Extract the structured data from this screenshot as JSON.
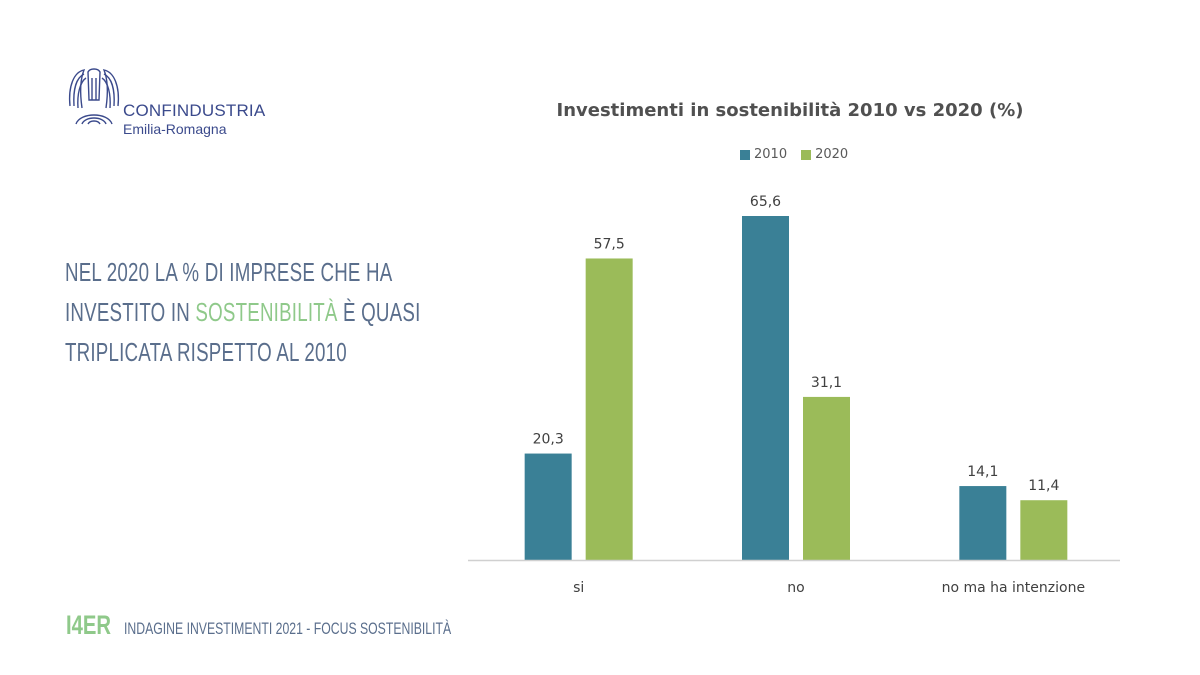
{
  "logo": {
    "name": "CONFINDUSTRIA",
    "region": "Emilia-Romagna"
  },
  "headline": {
    "before": "NEL 2020 LA % DI IMPRESE CHE HA INVESTITO IN ",
    "accent": "SOSTENIBILITÀ",
    "after": " È QUASI TRIPLICATA RISPETTO AL 2010"
  },
  "footer": {
    "brand": "I4ER",
    "text": "INDAGINE INVESTIMENTI 2021 - FOCUS SOSTENIBILITÀ"
  },
  "colors": {
    "series_2010": "#3a8096",
    "series_2020": "#9bbb59",
    "headline": "#5a6e8c",
    "accent": "#8fc98a"
  },
  "chart_data": {
    "type": "bar",
    "title": "Investimenti in sostenibilità 2010 vs 2020 (%)",
    "xlabel": "",
    "ylabel": "",
    "ylim": [
      0,
      70
    ],
    "grid": false,
    "legend_position": "top",
    "categories": [
      "si",
      "no",
      "no ma ha intenzione"
    ],
    "series": [
      {
        "name": "2010",
        "values": [
          20.3,
          65.6,
          14.1
        ],
        "labels": [
          "20,3",
          "65,6",
          "14,1"
        ],
        "color": "#3a8096"
      },
      {
        "name": "2020",
        "values": [
          57.5,
          31.1,
          11.4
        ],
        "labels": [
          "57,5",
          "31,1",
          "11,4"
        ],
        "color": "#9bbb59"
      }
    ]
  }
}
